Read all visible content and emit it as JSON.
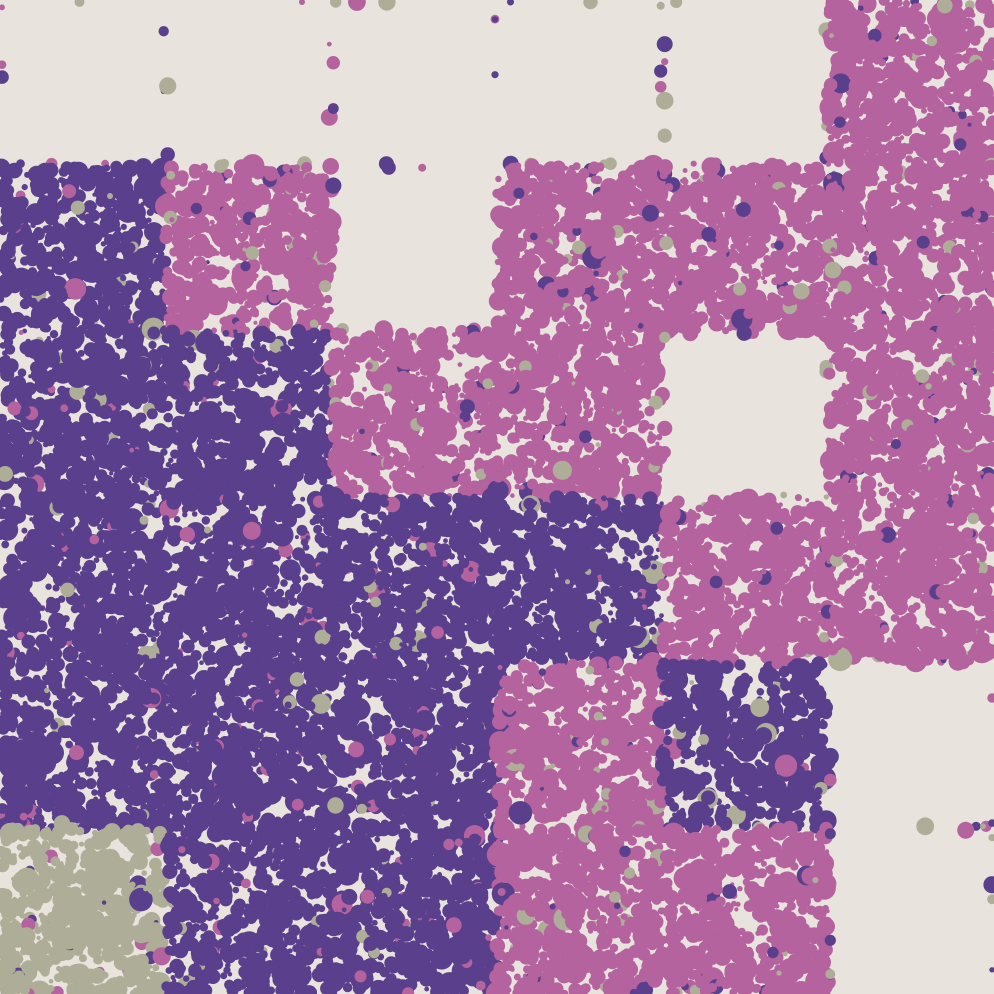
{
  "artwork": {
    "colors": {
      "background": "#e8e3dc",
      "violet": "#5a3f8c",
      "orchid": "#b4639f",
      "sage": "#aeae98"
    },
    "grid": {
      "columns": 6,
      "rows": 6,
      "cell_fill": [
        [
          "empty",
          "empty",
          "empty",
          "empty",
          "empty",
          "orchid"
        ],
        [
          "violet",
          "orchid",
          "empty",
          "orchid",
          "orchid",
          "orchid"
        ],
        [
          "violet",
          "violet",
          "orchid",
          "orchid",
          "empty",
          "orchid"
        ],
        [
          "violet",
          "violet",
          "violet",
          "violet",
          "orchid",
          "orchid"
        ],
        [
          "violet",
          "violet",
          "violet",
          "orchid",
          "violet",
          "empty"
        ],
        [
          "sage",
          "violet",
          "violet",
          "orchid",
          "orchid",
          "empty"
        ]
      ]
    },
    "density": 1.0
  }
}
